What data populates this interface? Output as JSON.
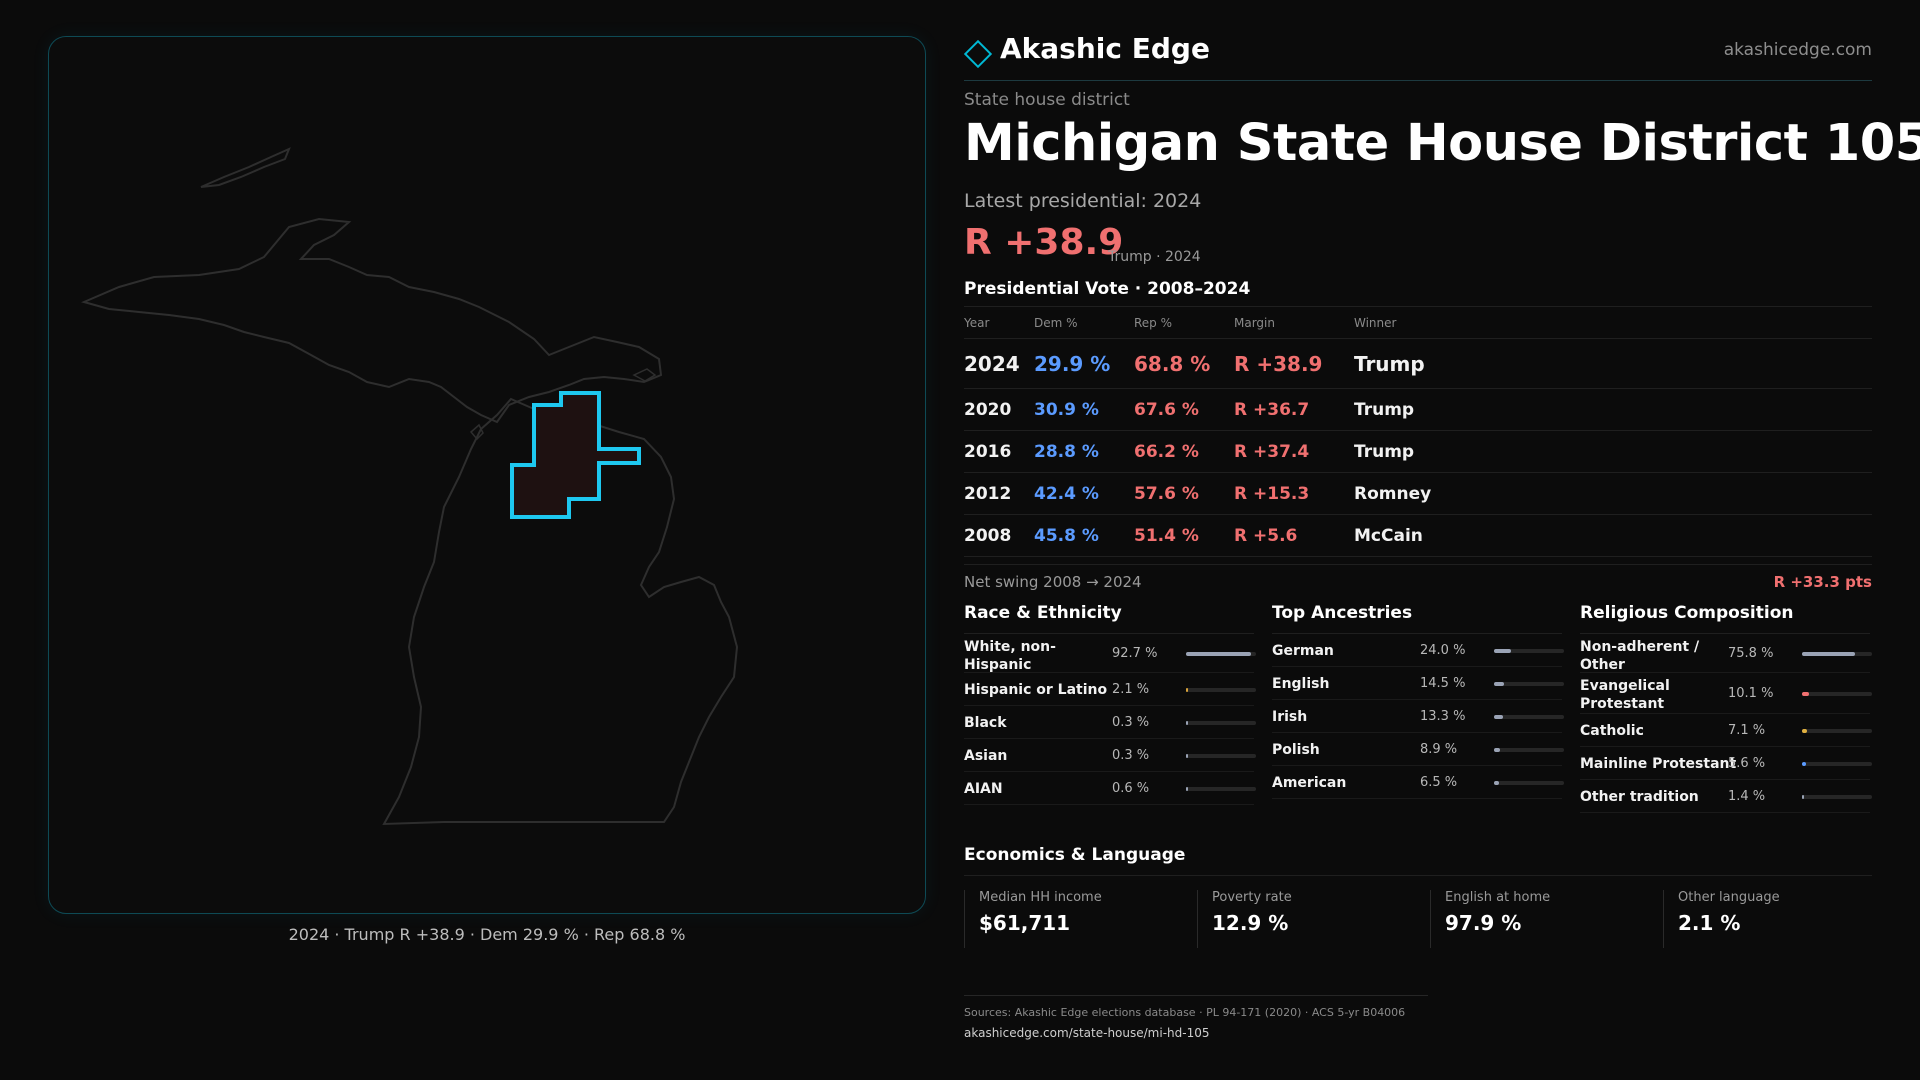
{
  "map": {
    "caption": "2024 · Trump R +38.9 · Dem 29.9 % · Rep 68.8 %",
    "border_color": "#0e4a55",
    "district_outline_color": "#1ec8f0",
    "district_fill_color": "#1e1111",
    "state_outline_color": "#2e2e2e"
  },
  "brand": {
    "name": "Akashic Edge",
    "site": "akashicedge.com",
    "accent": "#00b8d4"
  },
  "district": {
    "kicker": "State house district",
    "title": "Michigan State House District 105",
    "latest_label": "Latest presidential: 2024",
    "margin": "R +38.9",
    "margin_sub": "Trump · 2024"
  },
  "votes": {
    "title": "Presidential Vote · 2008–2024",
    "headers": {
      "year": "Year",
      "dem": "Dem %",
      "rep": "Rep %",
      "margin": "Margin",
      "winner": "Winner"
    },
    "rows": [
      {
        "year": "2024",
        "dem": "29.9 %",
        "rep": "68.8 %",
        "margin": "R +38.9",
        "winner": "Trump"
      },
      {
        "year": "2020",
        "dem": "30.9 %",
        "rep": "67.6 %",
        "margin": "R +36.7",
        "winner": "Trump"
      },
      {
        "year": "2016",
        "dem": "28.8 %",
        "rep": "66.2 %",
        "margin": "R +37.4",
        "winner": "Trump"
      },
      {
        "year": "2012",
        "dem": "42.4 %",
        "rep": "57.6 %",
        "margin": "R +15.3",
        "winner": "Romney"
      },
      {
        "year": "2008",
        "dem": "45.8 %",
        "rep": "51.4 %",
        "margin": "R +5.6",
        "winner": "McCain"
      }
    ],
    "swing_label": "Net swing 2008 → 2024",
    "swing_value": "R +33.3 pts",
    "dem_color": "#5b9bff",
    "rep_color": "#f07070"
  },
  "race": {
    "title": "Race & Ethnicity",
    "items": [
      {
        "label": "White, non-Hispanic",
        "value": "92.7 %",
        "fraction": 0.927,
        "color": "#9aa3b5"
      },
      {
        "label": "Hispanic or Latino",
        "value": "2.1 %",
        "fraction": 0.021,
        "color": "#d9a33a"
      },
      {
        "label": "Black",
        "value": "0.3 %",
        "fraction": 0.003,
        "color": "#9aa3b5"
      },
      {
        "label": "Asian",
        "value": "0.3 %",
        "fraction": 0.003,
        "color": "#9aa3b5"
      },
      {
        "label": "AIAN",
        "value": "0.6 %",
        "fraction": 0.006,
        "color": "#9aa3b5"
      }
    ]
  },
  "ancestry": {
    "title": "Top Ancestries",
    "items": [
      {
        "label": "German",
        "value": "24.0 %",
        "fraction": 0.24,
        "color": "#9aa3b5"
      },
      {
        "label": "English",
        "value": "14.5 %",
        "fraction": 0.145,
        "color": "#9aa3b5"
      },
      {
        "label": "Irish",
        "value": "13.3 %",
        "fraction": 0.133,
        "color": "#9aa3b5"
      },
      {
        "label": "Polish",
        "value": "8.9 %",
        "fraction": 0.089,
        "color": "#9aa3b5"
      },
      {
        "label": "American",
        "value": "6.5 %",
        "fraction": 0.065,
        "color": "#9aa3b5"
      }
    ]
  },
  "religion": {
    "title": "Religious Composition",
    "items": [
      {
        "label": "Non-adherent / Other",
        "value": "75.8 %",
        "fraction": 0.758,
        "color": "#9aa3b5"
      },
      {
        "label": "Evangelical Protestant",
        "value": "10.1 %",
        "fraction": 0.101,
        "color": "#f07070"
      },
      {
        "label": "Catholic",
        "value": "7.1 %",
        "fraction": 0.071,
        "color": "#e0b040"
      },
      {
        "label": "Mainline Protestant",
        "value": "5.6 %",
        "fraction": 0.056,
        "color": "#5b9bff"
      },
      {
        "label": "Other tradition",
        "value": "1.4 %",
        "fraction": 0.014,
        "color": "#9aa3b5"
      }
    ]
  },
  "economics": {
    "title": "Economics & Language",
    "cards": [
      {
        "label": "Median HH income",
        "value": "$61,711"
      },
      {
        "label": "Poverty rate",
        "value": "12.9 %"
      },
      {
        "label": "English at home",
        "value": "97.9 %"
      },
      {
        "label": "Other language",
        "value": "2.1 %"
      }
    ]
  },
  "footer": {
    "sources": "Sources: Akashic Edge elections database · PL 94-171 (2020) · ACS 5-yr B04006",
    "url": "akashicedge.com/state-house/mi-hd-105"
  }
}
